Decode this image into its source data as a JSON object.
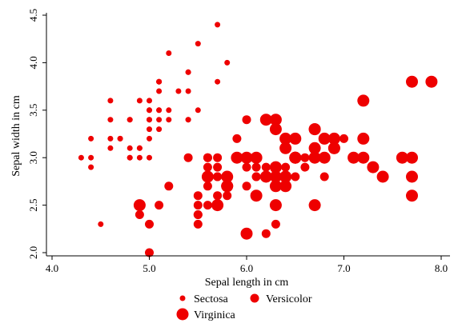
{
  "chart_data": {
    "type": "scatter",
    "title": "",
    "xlabel": "Sepal length in cm",
    "ylabel": "Sepal width in cm",
    "xlim": [
      4.0,
      8.0
    ],
    "ylim": [
      2.0,
      4.5
    ],
    "x_ticks": [
      "4.0",
      "5.0",
      "6.0",
      "7.0",
      "8.0"
    ],
    "y_ticks": [
      "2.0",
      "2.5",
      "3.0",
      "3.5",
      "4.0",
      "4.5"
    ],
    "grid": false,
    "legend_position": "bottom",
    "marker_color": "#ee0000",
    "series": [
      {
        "name": "Sectosa",
        "marker": "small",
        "points": [
          [
            5.1,
            3.5
          ],
          [
            4.9,
            3.0
          ],
          [
            4.7,
            3.2
          ],
          [
            4.6,
            3.1
          ],
          [
            5.0,
            3.6
          ],
          [
            5.4,
            3.9
          ],
          [
            4.6,
            3.4
          ],
          [
            5.0,
            3.4
          ],
          [
            4.4,
            2.9
          ],
          [
            4.9,
            3.1
          ],
          [
            5.4,
            3.7
          ],
          [
            4.8,
            3.4
          ],
          [
            4.8,
            3.0
          ],
          [
            4.3,
            3.0
          ],
          [
            5.8,
            4.0
          ],
          [
            5.7,
            4.4
          ],
          [
            5.4,
            3.9
          ],
          [
            5.1,
            3.5
          ],
          [
            5.7,
            3.8
          ],
          [
            5.1,
            3.8
          ],
          [
            5.4,
            3.4
          ],
          [
            5.1,
            3.7
          ],
          [
            4.6,
            3.6
          ],
          [
            5.1,
            3.3
          ],
          [
            4.8,
            3.4
          ],
          [
            5.0,
            3.0
          ],
          [
            5.0,
            3.4
          ],
          [
            5.2,
            3.5
          ],
          [
            5.2,
            3.4
          ],
          [
            4.7,
            3.2
          ],
          [
            4.8,
            3.1
          ],
          [
            5.4,
            3.4
          ],
          [
            5.2,
            4.1
          ],
          [
            5.5,
            4.2
          ],
          [
            4.9,
            3.1
          ],
          [
            5.0,
            3.2
          ],
          [
            5.5,
            3.5
          ],
          [
            4.9,
            3.6
          ],
          [
            4.4,
            3.0
          ],
          [
            5.1,
            3.4
          ],
          [
            5.0,
            3.5
          ],
          [
            4.5,
            2.3
          ],
          [
            4.4,
            3.2
          ],
          [
            5.0,
            3.5
          ],
          [
            5.1,
            3.8
          ],
          [
            4.8,
            3.0
          ],
          [
            5.1,
            3.8
          ],
          [
            4.6,
            3.2
          ],
          [
            5.3,
            3.7
          ],
          [
            5.0,
            3.3
          ]
        ]
      },
      {
        "name": "Versicolor",
        "marker": "medium",
        "points": [
          [
            7.0,
            3.2
          ],
          [
            6.4,
            3.2
          ],
          [
            6.9,
            3.1
          ],
          [
            5.5,
            2.3
          ],
          [
            6.5,
            2.8
          ],
          [
            5.7,
            2.8
          ],
          [
            6.3,
            3.3
          ],
          [
            4.9,
            2.4
          ],
          [
            6.6,
            2.9
          ],
          [
            5.2,
            2.7
          ],
          [
            5.0,
            2.0
          ],
          [
            5.9,
            3.0
          ],
          [
            6.0,
            2.2
          ],
          [
            6.1,
            2.9
          ],
          [
            5.6,
            2.9
          ],
          [
            6.7,
            3.1
          ],
          [
            5.6,
            3.0
          ],
          [
            5.8,
            2.7
          ],
          [
            6.2,
            2.2
          ],
          [
            5.6,
            2.5
          ],
          [
            5.9,
            3.2
          ],
          [
            6.1,
            2.8
          ],
          [
            6.3,
            2.5
          ],
          [
            6.1,
            2.8
          ],
          [
            6.4,
            2.9
          ],
          [
            6.6,
            3.0
          ],
          [
            6.8,
            2.8
          ],
          [
            6.7,
            3.0
          ],
          [
            6.0,
            2.9
          ],
          [
            5.7,
            2.6
          ],
          [
            5.5,
            2.4
          ],
          [
            5.5,
            2.4
          ],
          [
            5.8,
            2.7
          ],
          [
            6.0,
            2.7
          ],
          [
            5.4,
            3.0
          ],
          [
            6.0,
            3.4
          ],
          [
            6.7,
            3.1
          ],
          [
            6.3,
            2.3
          ],
          [
            5.6,
            3.0
          ],
          [
            5.5,
            2.5
          ],
          [
            5.5,
            2.6
          ],
          [
            6.1,
            3.0
          ],
          [
            5.8,
            2.6
          ],
          [
            5.0,
            2.3
          ],
          [
            5.6,
            2.7
          ],
          [
            5.7,
            3.0
          ],
          [
            5.7,
            2.9
          ],
          [
            6.2,
            2.9
          ],
          [
            5.1,
            2.5
          ],
          [
            5.7,
            2.8
          ]
        ]
      },
      {
        "name": "Virginica",
        "marker": "large",
        "points": [
          [
            6.3,
            3.3
          ],
          [
            5.8,
            2.7
          ],
          [
            7.1,
            3.0
          ],
          [
            6.3,
            2.9
          ],
          [
            6.5,
            3.0
          ],
          [
            7.6,
            3.0
          ],
          [
            4.9,
            2.5
          ],
          [
            7.3,
            2.9
          ],
          [
            6.7,
            2.5
          ],
          [
            7.2,
            3.6
          ],
          [
            6.5,
            3.2
          ],
          [
            6.4,
            2.7
          ],
          [
            6.8,
            3.0
          ],
          [
            5.7,
            2.5
          ],
          [
            5.8,
            2.8
          ],
          [
            6.4,
            3.2
          ],
          [
            6.5,
            3.0
          ],
          [
            7.7,
            3.8
          ],
          [
            7.7,
            2.6
          ],
          [
            6.0,
            2.2
          ],
          [
            6.9,
            3.2
          ],
          [
            5.6,
            2.8
          ],
          [
            7.7,
            2.8
          ],
          [
            6.3,
            2.7
          ],
          [
            6.7,
            3.3
          ],
          [
            7.2,
            3.2
          ],
          [
            6.2,
            2.8
          ],
          [
            6.1,
            3.0
          ],
          [
            6.4,
            2.8
          ],
          [
            7.2,
            3.0
          ],
          [
            7.4,
            2.8
          ],
          [
            7.9,
            3.8
          ],
          [
            6.4,
            2.8
          ],
          [
            6.3,
            2.8
          ],
          [
            6.1,
            2.6
          ],
          [
            7.7,
            3.0
          ],
          [
            6.3,
            3.4
          ],
          [
            6.4,
            3.1
          ],
          [
            6.0,
            3.0
          ],
          [
            6.9,
            3.1
          ],
          [
            6.7,
            3.1
          ],
          [
            6.9,
            3.1
          ],
          [
            5.8,
            2.7
          ],
          [
            6.8,
            3.2
          ],
          [
            6.7,
            3.3
          ],
          [
            6.7,
            3.0
          ],
          [
            6.3,
            2.5
          ],
          [
            6.5,
            3.0
          ],
          [
            6.2,
            3.4
          ],
          [
            5.9,
            3.0
          ]
        ]
      }
    ]
  }
}
